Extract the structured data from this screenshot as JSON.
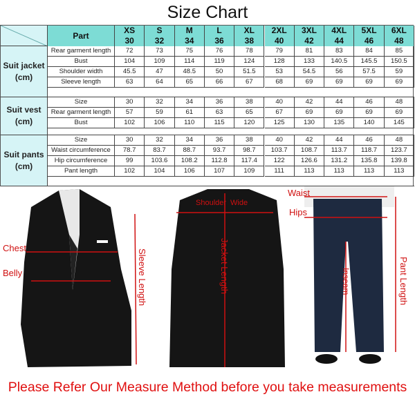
{
  "title": "Size Chart",
  "table": {
    "part_header": "Part",
    "sizes": [
      {
        "letter": "XS",
        "num": "30"
      },
      {
        "letter": "S",
        "num": "32"
      },
      {
        "letter": "M",
        "num": "34"
      },
      {
        "letter": "L",
        "num": "36"
      },
      {
        "letter": "XL",
        "num": "38"
      },
      {
        "letter": "2XL",
        "num": "40"
      },
      {
        "letter": "3XL",
        "num": "42"
      },
      {
        "letter": "4XL",
        "num": "44"
      },
      {
        "letter": "5XL",
        "num": "46"
      },
      {
        "letter": "6XL",
        "num": "48"
      }
    ],
    "sections": [
      {
        "name": "Suit jacket",
        "unit": "(cm)",
        "rows": [
          {
            "part": "Rear garment length",
            "values": [
              "72",
              "73",
              "75",
              "76",
              "78",
              "79",
              "81",
              "83",
              "84",
              "85"
            ]
          },
          {
            "part": "Bust",
            "values": [
              "104",
              "109",
              "114",
              "119",
              "124",
              "128",
              "133",
              "140.5",
              "145.5",
              "150.5"
            ]
          },
          {
            "part": "Shoulder width",
            "values": [
              "45.5",
              "47",
              "48.5",
              "50",
              "51.5",
              "53",
              "54.5",
              "56",
              "57.5",
              "59"
            ]
          },
          {
            "part": "Sleeve length",
            "values": [
              "63",
              "64",
              "65",
              "66",
              "67",
              "68",
              "69",
              "69",
              "69",
              "69"
            ]
          }
        ]
      },
      {
        "name": "Suit vest",
        "unit": "(cm)",
        "rows": [
          {
            "part": "Size",
            "values": [
              "30",
              "32",
              "34",
              "36",
              "38",
              "40",
              "42",
              "44",
              "46",
              "48"
            ]
          },
          {
            "part": "Rear garment length",
            "values": [
              "57",
              "59",
              "61",
              "63",
              "65",
              "67",
              "69",
              "69",
              "69",
              "69"
            ]
          },
          {
            "part": "Bust",
            "values": [
              "102",
              "106",
              "110",
              "115",
              "120",
              "125",
              "130",
              "135",
              "140",
              "145"
            ]
          }
        ]
      },
      {
        "name": "Suit pants",
        "unit": "(cm)",
        "rows": [
          {
            "part": "Size",
            "values": [
              "30",
              "32",
              "34",
              "36",
              "38",
              "40",
              "42",
              "44",
              "46",
              "48"
            ]
          },
          {
            "part": "Waist circumference",
            "values": [
              "78.7",
              "83.7",
              "88.7",
              "93.7",
              "98.7",
              "103.7",
              "108.7",
              "113.7",
              "118.7",
              "123.7"
            ]
          },
          {
            "part": "Hip circumference",
            "values": [
              "99",
              "103.6",
              "108.2",
              "112.8",
              "117.4",
              "122",
              "126.6",
              "131.2",
              "135.8",
              "139.8"
            ]
          },
          {
            "part": "Pant length",
            "values": [
              "102",
              "104",
              "106",
              "107",
              "109",
              "111",
              "113",
              "113",
              "113",
              "113"
            ]
          }
        ]
      }
    ]
  },
  "measure_labels": {
    "chest": "Chest",
    "belly": "Belly",
    "sleeve_length": "Sleeve Length",
    "shoulder": "Shoulder",
    "wide": "Wide",
    "jacket_length": "Jacket Length",
    "waist": "Waist",
    "hips": "Hips",
    "inseam": "Inseam",
    "pant_length": "Pant Length"
  },
  "caption": "Please Refer Our Measure Method before you take measurements",
  "colors": {
    "header": "#7ddcd5",
    "side": "#d6f4f6",
    "measure": "#d01010"
  }
}
